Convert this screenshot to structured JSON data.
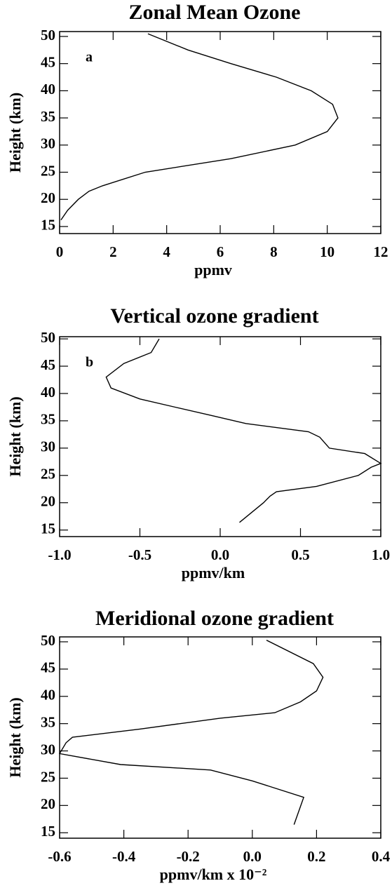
{
  "chart_data": [
    {
      "type": "line",
      "title": "Zonal Mean Ozone",
      "x_label": "ppmv",
      "y_label": "Height (km)",
      "annotation": "a",
      "xlim": [
        0,
        12
      ],
      "xticks": [
        0,
        2,
        4,
        6,
        8,
        10,
        12
      ],
      "ylim": [
        13.7,
        50.9
      ],
      "yticks": [
        15,
        20,
        25,
        30,
        35,
        40,
        45,
        50
      ],
      "color": "#000000",
      "heights": [
        50.5,
        47.5,
        45,
        42.5,
        40,
        37.5,
        35,
        32.5,
        30,
        27.5,
        25,
        22.5,
        21.5,
        20,
        18,
        16.2
      ],
      "values": [
        3.3,
        4.8,
        6.4,
        8.1,
        9.4,
        10.2,
        10.4,
        10.0,
        8.8,
        6.4,
        3.2,
        1.6,
        1.1,
        0.7,
        0.3,
        0.05
      ]
    },
    {
      "type": "line",
      "title": "Vertical ozone gradient",
      "x_label": "ppmv/km",
      "y_label": "Height (km)",
      "annotation": "b",
      "xlim": [
        -1,
        1
      ],
      "xticks": [
        {
          "value": -1,
          "label": "-1.0"
        },
        {
          "value": -0.5,
          "label": "-0.5"
        },
        {
          "value": 0,
          "label": "0.0"
        },
        {
          "value": 0.5,
          "label": "0.5"
        },
        {
          "value": 1,
          "label": "1.0"
        }
      ],
      "ylim": [
        13.8,
        50.4
      ],
      "yticks": [
        15,
        20,
        25,
        30,
        35,
        40,
        45,
        50
      ],
      "color": "#000000",
      "heights": [
        50,
        47.5,
        45.5,
        43,
        41,
        39,
        37.5,
        36,
        34.5,
        33,
        32,
        30,
        29,
        27.2,
        26.5,
        25,
        23,
        22,
        21.2,
        20,
        16.4
      ],
      "values": [
        -0.38,
        -0.43,
        -0.6,
        -0.71,
        -0.68,
        -0.5,
        -0.28,
        -0.06,
        0.16,
        0.55,
        0.62,
        0.68,
        0.9,
        1.0,
        0.94,
        0.86,
        0.6,
        0.35,
        0.31,
        0.27,
        0.12
      ]
    },
    {
      "type": "line",
      "title": "Meridional ozone gradient",
      "x_label": "ppmv/km x 10⁻²",
      "y_label": "Height (km)",
      "xlim": [
        -0.6,
        0.4
      ],
      "xticks": [
        {
          "value": -0.6,
          "label": "-0.6"
        },
        {
          "value": -0.4,
          "label": "-0.4"
        },
        {
          "value": -0.2,
          "label": "-0.2"
        },
        {
          "value": 0,
          "label": "0.0"
        },
        {
          "value": 0.2,
          "label": "0.2"
        },
        {
          "value": 0.4,
          "label": "0.4"
        }
      ],
      "ylim": [
        14.0,
        50.9
      ],
      "yticks": [
        15,
        20,
        25,
        30,
        35,
        40,
        45,
        50
      ],
      "color": "#000000",
      "heights": [
        50.3,
        46,
        43.5,
        41,
        39,
        37,
        36,
        34,
        32.5,
        31.5,
        29.5,
        27.5,
        26.5,
        24.5,
        21.5,
        16.5
      ],
      "values": [
        0.044,
        0.19,
        0.22,
        0.2,
        0.15,
        0.07,
        -0.1,
        -0.35,
        -0.56,
        -0.58,
        -0.6,
        -0.41,
        -0.13,
        0.0,
        0.16,
        0.13
      ]
    }
  ]
}
